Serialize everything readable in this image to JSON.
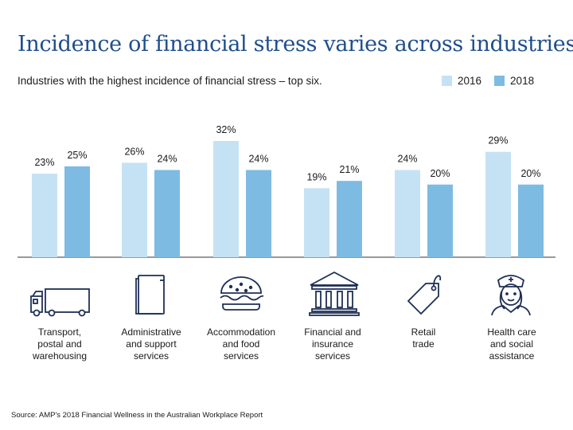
{
  "title": "Incidence of financial stress varies across industries",
  "subtitle": "Industries with the highest incidence of financial stress – top six.",
  "legend": [
    {
      "label": "2016",
      "color": "#c5e2f5"
    },
    {
      "label": "2018",
      "color": "#7dbbe3"
    }
  ],
  "source": "Source: AMP's 2018 Financial Wellness in the Australian Workplace Report",
  "icons": [
    "truck-icon",
    "book-icon",
    "burger-icon",
    "bank-icon",
    "price-tag-icon",
    "nurse-icon"
  ],
  "chart_data": {
    "type": "bar",
    "categories": [
      "Transport, postal and warehousing",
      "Administrative and support services",
      "Accommodation and food services",
      "Financial and insurance services",
      "Retail trade",
      "Health care and social assistance"
    ],
    "category_lines": [
      [
        "Transport,",
        "postal and",
        "warehousing"
      ],
      [
        "Administrative",
        "and support",
        "services"
      ],
      [
        "Accommodation",
        "and food",
        "services"
      ],
      [
        "Financial and",
        "insurance",
        "services"
      ],
      [
        "Retail",
        "trade"
      ],
      [
        "Health care",
        "and social",
        "assistance"
      ]
    ],
    "series": [
      {
        "name": "2016",
        "values": [
          23,
          26,
          32,
          19,
          24,
          29
        ],
        "labels": [
          "23%",
          "26%",
          "32%",
          "19%",
          "24%",
          "29%"
        ],
        "color": "#c5e2f5"
      },
      {
        "name": "2018",
        "values": [
          25,
          24,
          24,
          21,
          20,
          20
        ],
        "labels": [
          "25%",
          "24%",
          "24%",
          "21%",
          "20%",
          "20%"
        ],
        "color": "#7dbbe3"
      }
    ],
    "ylim": [
      0,
      32
    ],
    "grid": false,
    "legend_position": "top-right"
  }
}
